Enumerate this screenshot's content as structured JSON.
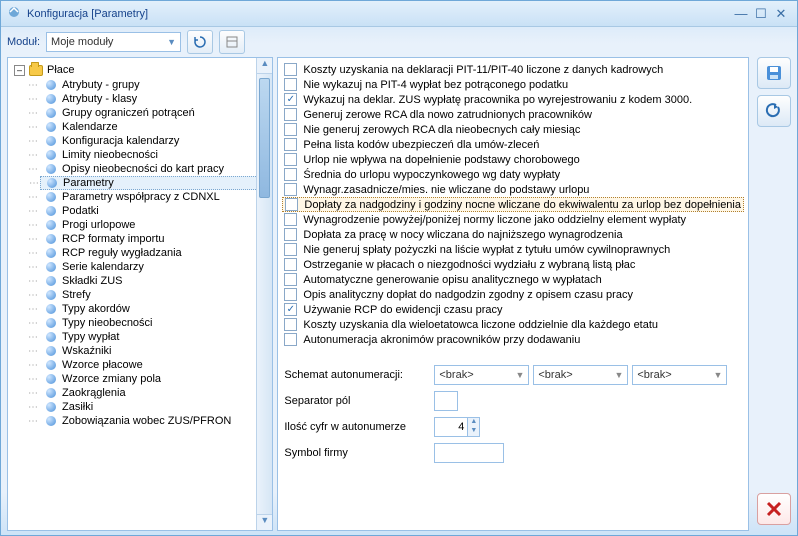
{
  "window": {
    "title": "Konfiguracja [Parametry]"
  },
  "toolbar": {
    "modul_label": "Moduł:",
    "modul_value": "Moje moduły"
  },
  "tree": {
    "root": "Płace",
    "items": [
      "Atrybuty - grupy",
      "Atrybuty - klasy",
      "Grupy ograniczeń potrąceń",
      "Kalendarze",
      "Konfiguracja kalendarzy",
      "Limity nieobecności",
      "Opisy nieobecności do kart pracy",
      "Parametry",
      "Parametry współpracy z CDNXL",
      "Podatki",
      "Progi urlopowe",
      "RCP formaty importu",
      "RCP reguły wygładzania",
      "Serie kalendarzy",
      "Składki ZUS",
      "Strefy",
      "Typy akordów",
      "Typy nieobecności",
      "Typy wypłat",
      "Wskaźniki",
      "Wzorce płacowe",
      "Wzorce zmiany pola",
      "Zaokrąglenia",
      "Zasiłki",
      "Zobowiązania wobec ZUS/PFRON"
    ],
    "selected_index": 7
  },
  "checkboxes": [
    {
      "label": "Koszty uzyskania na deklaracji PIT-11/PIT-40 liczone z danych kadrowych",
      "checked": false
    },
    {
      "label": "Nie wykazuj na PIT-4 wypłat bez potrąconego podatku",
      "checked": false
    },
    {
      "label": "Wykazuj na deklar. ZUS wypłatę pracownika po wyrejestrowaniu z kodem 3000.",
      "checked": true
    },
    {
      "label": "Generuj zerowe RCA dla nowo zatrudnionych pracowników",
      "checked": false
    },
    {
      "label": "Nie generuj zerowych RCA dla nieobecnych cały miesiąc",
      "checked": false
    },
    {
      "label": "Pełna lista kodów ubezpieczeń dla umów-zleceń",
      "checked": false
    },
    {
      "label": "Urlop nie wpływa na dopełnienie podstawy chorobowego",
      "checked": false
    },
    {
      "label": "Średnia do urlopu wypoczynkowego wg daty wypłaty",
      "checked": false
    },
    {
      "label": "Wynagr.zasadnicze/mies. nie wliczane do podstawy urlopu",
      "checked": false
    },
    {
      "label": "Dopłaty za nadgodziny i godziny nocne wliczane do ekwiwalentu za urlop bez dopełnienia",
      "checked": false,
      "highlight": true
    },
    {
      "label": "Wynagrodzenie powyżej/poniżej normy liczone jako oddzielny element wypłaty",
      "checked": false
    },
    {
      "label": "Dopłata za pracę w nocy wliczana do najniższego wynagrodzenia",
      "checked": false
    },
    {
      "label": "Nie generuj spłaty pożyczki na liście wypłat z tytułu umów cywilnoprawnych",
      "checked": false
    },
    {
      "label": "Ostrzeganie w płacach o niezgodności wydziału z wybraną listą płac",
      "checked": false
    },
    {
      "label": "Automatyczne generowanie opisu analitycznego w wypłatach",
      "checked": false
    },
    {
      "label": "Opis analityczny dopłat do nadgodzin zgodny z opisem czasu pracy",
      "checked": false
    },
    {
      "label": "Używanie RCP do ewidencji czasu pracy",
      "checked": true
    },
    {
      "label": "Koszty uzyskania dla wieloetatowca liczone oddzielnie dla każdego etatu",
      "checked": false
    },
    {
      "label": "Autonumeracja akronimów pracowników przy dodawaniu",
      "checked": false
    }
  ],
  "form": {
    "schemat_label": "Schemat autonumeracji:",
    "schemat_values": [
      "<brak>",
      "<brak>",
      "<brak>"
    ],
    "separator_label": "Separator pól",
    "separator_value": "",
    "ilosc_label": "Ilość cyfr w autonumerze",
    "ilosc_value": "4",
    "symbol_label": "Symbol firmy",
    "symbol_value": ""
  }
}
